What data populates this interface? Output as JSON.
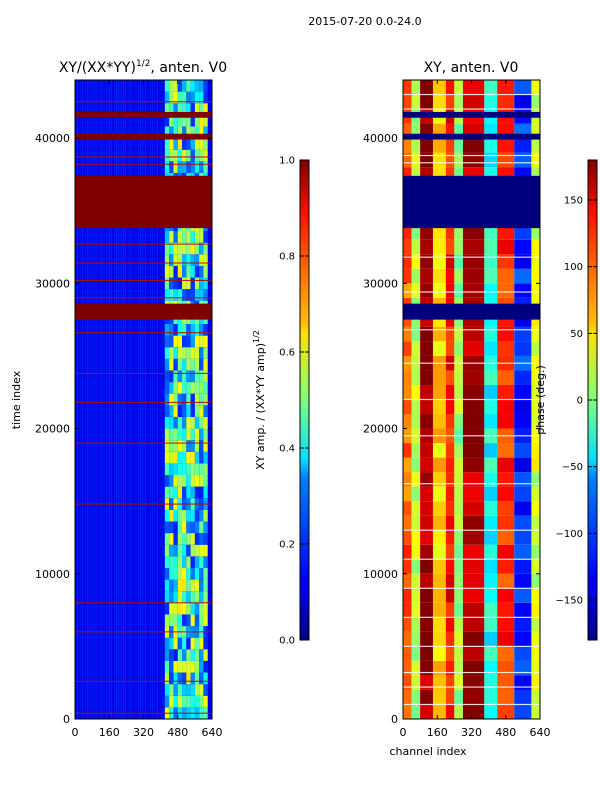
{
  "suptitle": "2015-07-20 0.0-24.0",
  "chart_data": [
    {
      "type": "heatmap",
      "title_main": "XY/(XX*YY)",
      "title_sup": "1/2",
      "title_rest": ", anten. V0",
      "xlabel": "",
      "ylabel": "time index",
      "xlim": [
        0,
        640
      ],
      "ylim": [
        0,
        44000
      ],
      "xticks": [
        0,
        160,
        320,
        480,
        640
      ],
      "yticks": [
        0,
        10000,
        20000,
        30000,
        40000
      ],
      "colorbar": {
        "label_main": "XY amp. / (XX*YY amp)",
        "label_sup": "1/2",
        "range": [
          0.0,
          1.0
        ],
        "ticks": [
          "0.0",
          "0.2",
          "0.4",
          "0.6",
          "0.8",
          "1.0"
        ],
        "tick_values": [
          0.0,
          0.2,
          0.4,
          0.6,
          0.8,
          1.0
        ]
      },
      "colormap": "jet",
      "background_value": 0.1,
      "flagged_time_bands": [
        [
          27500,
          28600
        ],
        [
          33800,
          37400
        ],
        [
          39900,
          40300
        ],
        [
          41400,
          41800
        ]
      ],
      "bright_channel_region": [
        420,
        620
      ],
      "thin_flag_lines": [
        400,
        2600,
        6000,
        8000,
        14800,
        19000,
        21800,
        23800,
        26600,
        29000,
        30200,
        31400,
        32700,
        38200,
        38700,
        42500
      ]
    },
    {
      "type": "heatmap",
      "title_main": "XY, anten. V0",
      "xlabel": "channel index",
      "ylabel": "",
      "xlim": [
        0,
        640
      ],
      "ylim": [
        0,
        44000
      ],
      "xticks": [
        0,
        160,
        320,
        480,
        640
      ],
      "yticks": [
        0,
        10000,
        20000,
        30000,
        40000
      ],
      "colorbar": {
        "label_main": "phase (deg.)",
        "range": [
          -180,
          180
        ],
        "ticks": [
          "−150",
          "−100",
          "−50",
          "0",
          "50",
          "100",
          "150"
        ],
        "tick_values": [
          -150,
          -100,
          -50,
          0,
          50,
          100,
          150
        ]
      },
      "colormap": "jet",
      "flagged_time_bands": [
        [
          27500,
          28600
        ],
        [
          33800,
          37400
        ],
        [
          39900,
          40300
        ],
        [
          41400,
          41800
        ]
      ],
      "phase_stripes_deg": [
        {
          "from": 0,
          "to": 40,
          "deg": 100
        },
        {
          "from": 40,
          "to": 80,
          "deg": 20
        },
        {
          "from": 80,
          "to": 140,
          "deg": 170
        },
        {
          "from": 140,
          "to": 200,
          "deg": 60
        },
        {
          "from": 200,
          "to": 240,
          "deg": 130
        },
        {
          "from": 240,
          "to": 280,
          "deg": 10
        },
        {
          "from": 280,
          "to": 380,
          "deg": 165
        },
        {
          "from": 380,
          "to": 440,
          "deg": -40
        },
        {
          "from": 440,
          "to": 520,
          "deg": 120
        },
        {
          "from": 520,
          "to": 600,
          "deg": -120
        },
        {
          "from": 600,
          "to": 640,
          "deg": 30
        }
      ]
    }
  ]
}
